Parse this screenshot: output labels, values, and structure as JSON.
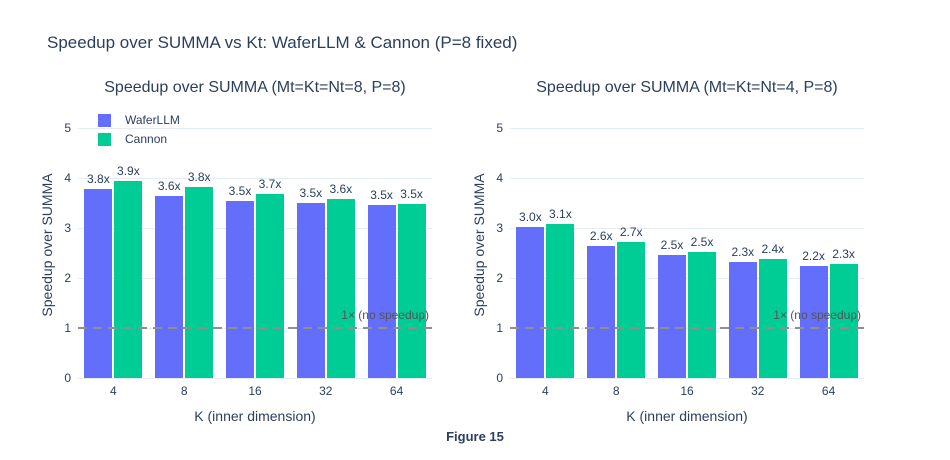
{
  "title": "Speedup over SUMMA vs Kt: WaferLLM & Cannon (P=8 fixed)",
  "caption": "Figure 15",
  "colors": {
    "waferllm": "#636EFA",
    "cannon": "#00CC96",
    "text": "#2a3f5f",
    "grid": "#E5ECF6",
    "reference_line": "#8f8f8f",
    "annotation_text": "#555555",
    "background": "#ffffff"
  },
  "legend": {
    "position": "top-left-inside-left-subplot",
    "items": [
      {
        "label": "WaferLLM",
        "color": "#636EFA"
      },
      {
        "label": "Cannon",
        "color": "#00CC96"
      }
    ]
  },
  "chart_data": [
    {
      "type": "bar",
      "title": "Speedup over SUMMA (Mt=Kt=Nt=8, P=8)",
      "xlabel": "K (inner dimension)",
      "ylabel": "Speedup over SUMMA",
      "categories": [
        "4",
        "8",
        "16",
        "32",
        "64"
      ],
      "series": [
        {
          "name": "WaferLLM",
          "color": "#636EFA",
          "values": [
            3.78,
            3.63,
            3.54,
            3.5,
            3.46
          ],
          "labels": [
            "3.8x",
            "3.6x",
            "3.5x",
            "3.5x",
            "3.5x"
          ]
        },
        {
          "name": "Cannon",
          "color": "#00CC96",
          "values": [
            3.93,
            3.81,
            3.68,
            3.57,
            3.47
          ],
          "labels": [
            "3.9x",
            "3.8x",
            "3.7x",
            "3.6x",
            "3.5x"
          ]
        }
      ],
      "ylim": [
        0,
        5.3
      ],
      "yticks": [
        0,
        1,
        2,
        3,
        4,
        5
      ],
      "grid": true,
      "legend_visible": true,
      "reference_line": {
        "y": 1,
        "label": "1× (no speedup)"
      }
    },
    {
      "type": "bar",
      "title": "Speedup over SUMMA (Mt=Kt=Nt=4, P=8)",
      "xlabel": "K (inner dimension)",
      "ylabel": "Speedup over SUMMA",
      "categories": [
        "4",
        "8",
        "16",
        "32",
        "64"
      ],
      "series": [
        {
          "name": "WaferLLM",
          "color": "#636EFA",
          "values": [
            3.02,
            2.63,
            2.45,
            2.31,
            2.23
          ],
          "labels": [
            "3.0x",
            "2.6x",
            "2.5x",
            "2.3x",
            "2.2x"
          ]
        },
        {
          "name": "Cannon",
          "color": "#00CC96",
          "values": [
            3.08,
            2.71,
            2.52,
            2.37,
            2.27
          ],
          "labels": [
            "3.1x",
            "2.7x",
            "2.5x",
            "2.4x",
            "2.3x"
          ]
        }
      ],
      "ylim": [
        0,
        5.3
      ],
      "yticks": [
        0,
        1,
        2,
        3,
        4,
        5
      ],
      "grid": true,
      "legend_visible": false,
      "reference_line": {
        "y": 1,
        "label": "1× (no speedup)"
      }
    }
  ]
}
